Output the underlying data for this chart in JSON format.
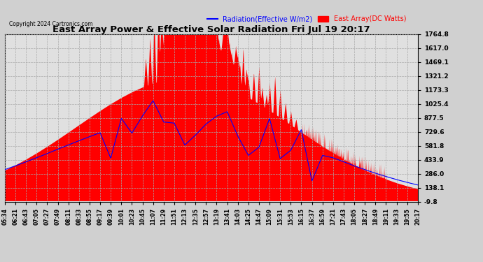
{
  "title": "East Array Power & Effective Solar Radiation Fri Jul 19 20:17",
  "copyright": "Copyright 2024 Cartronics.com",
  "legend_radiation": "Radiation(Effective W/m2)",
  "legend_array": "East Array(DC Watts)",
  "radiation_color": "blue",
  "array_color": "red",
  "bg_color": "#d0d0d0",
  "plot_bg_color": "#e0e0e0",
  "grid_color": "#aaaaaa",
  "ytick_labels": [
    "1764.8",
    "1617.0",
    "1469.1",
    "1321.2",
    "1173.3",
    "1025.4",
    "877.5",
    "729.6",
    "581.8",
    "433.9",
    "286.0",
    "138.1",
    "-9.8"
  ],
  "ymax": 1764.8,
  "ymin": -9.8,
  "xtick_labels": [
    "05:34",
    "06:21",
    "06:43",
    "07:05",
    "07:27",
    "07:49",
    "08:11",
    "08:33",
    "08:55",
    "09:17",
    "09:39",
    "10:01",
    "10:23",
    "10:45",
    "11:07",
    "11:29",
    "11:51",
    "12:13",
    "12:35",
    "12:57",
    "13:19",
    "13:41",
    "14:03",
    "14:25",
    "14:47",
    "15:09",
    "15:31",
    "15:53",
    "16:15",
    "16:37",
    "16:59",
    "17:21",
    "17:43",
    "18:05",
    "18:27",
    "18:49",
    "19:11",
    "19:33",
    "19:55",
    "20:17"
  ],
  "figsize": [
    6.9,
    3.75
  ],
  "dpi": 100
}
